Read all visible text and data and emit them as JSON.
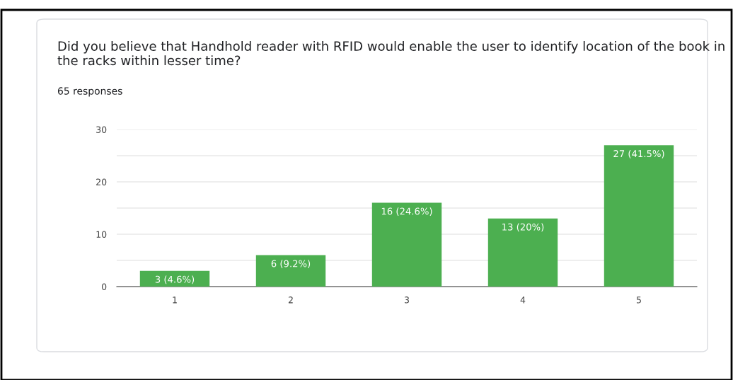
{
  "chart_data": {
    "type": "bar",
    "title": "Did you believe that Handhold reader with RFID would enable the user to identify location of the book in the racks within lesser time?",
    "subtitle": "65 responses",
    "categories": [
      "1",
      "2",
      "3",
      "4",
      "5"
    ],
    "values": [
      3,
      6,
      16,
      13,
      27
    ],
    "value_labels": [
      "3 (4.6%)",
      "6 (9.2%)",
      "16 (24.6%)",
      "13 (20%)",
      "27 (41.5%)"
    ],
    "color": "#4caf50",
    "ylim": [
      0,
      30
    ],
    "yticks": [
      0,
      {
        "value": 5,
        "label": null
      },
      10,
      {
        "value": 15,
        "label": null
      },
      20,
      {
        "value": 25,
        "label": null
      },
      30
    ],
    "grid": "y"
  }
}
